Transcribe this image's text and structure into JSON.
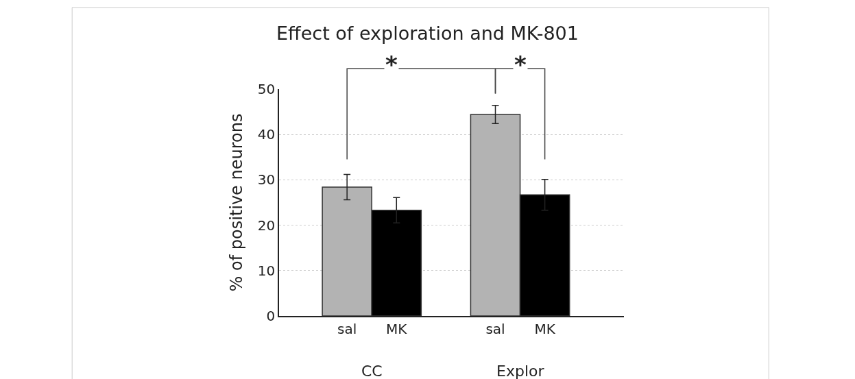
{
  "chart_data": {
    "type": "bar",
    "title": "Effect of exploration and MK-801",
    "ylabel": "% of positive neurons",
    "categories": [
      "sal",
      "MK",
      "sal",
      "MK"
    ],
    "values": [
      28.4,
      23.3,
      44.4,
      26.7
    ],
    "colors": [
      "#b3b3b3",
      "#000000",
      "#b3b3b3",
      "#000000"
    ],
    "errors": [
      2.8,
      2.8,
      2.0,
      3.4
    ],
    "ylim": [
      0,
      50
    ],
    "yticks": [
      0,
      10,
      20,
      30,
      40,
      50
    ],
    "grid": "y",
    "annotations": [
      "*",
      "*",
      "CC",
      "Explor"
    ]
  }
}
